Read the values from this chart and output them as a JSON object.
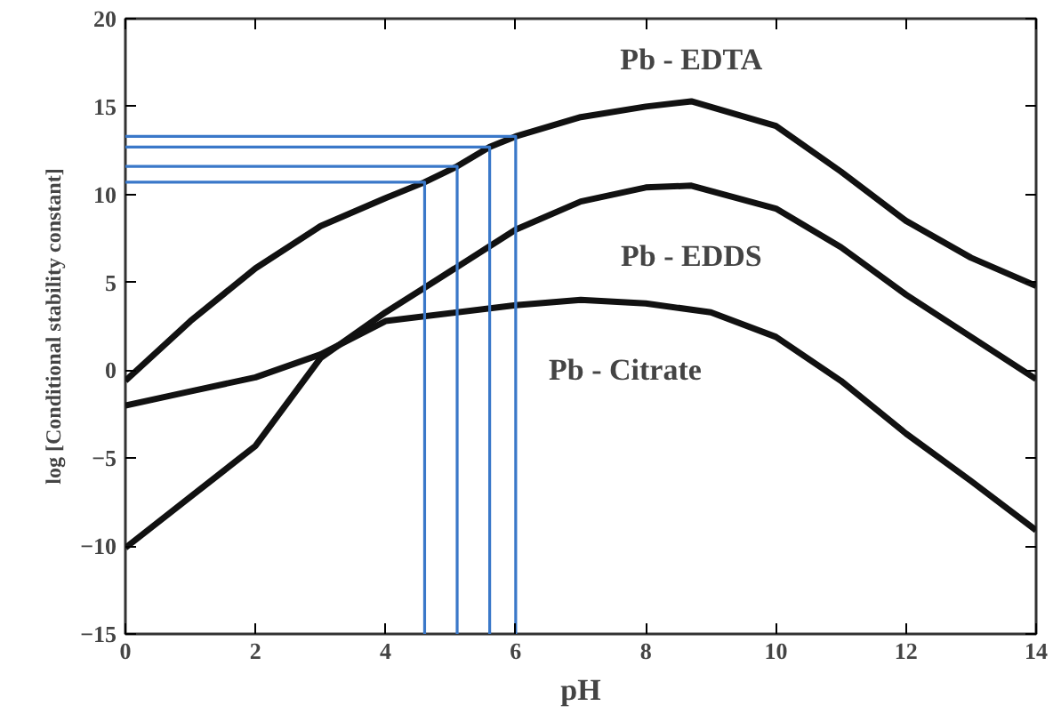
{
  "chart_data": {
    "type": "line",
    "xlabel": "pH",
    "ylabel": "log [Conditional stability constant]",
    "xlim": [
      0,
      14
    ],
    "ylim": [
      -15,
      20
    ],
    "xticks": [
      0,
      2,
      4,
      6,
      8,
      10,
      12,
      14
    ],
    "yticks": [
      -15,
      -10,
      -5,
      0,
      5,
      10,
      15,
      20
    ],
    "grid": false,
    "marker": "none",
    "line_style": "solid",
    "series": [
      {
        "name": "Pb - EDTA",
        "color": "#111111",
        "x": [
          0,
          1,
          2,
          3,
          4,
          4.6,
          5.1,
          5.6,
          6,
          7,
          8,
          8.7,
          10,
          11,
          12,
          13,
          14
        ],
        "values": [
          -0.6,
          2.8,
          5.8,
          8.2,
          9.8,
          10.7,
          11.6,
          12.7,
          13.3,
          14.4,
          15.0,
          15.3,
          13.9,
          11.3,
          8.5,
          6.4,
          4.8
        ]
      },
      {
        "name": "Pb - EDDS",
        "color": "#111111",
        "x": [
          0,
          1,
          2,
          3,
          4,
          4.6,
          6,
          7,
          8,
          8.7,
          10,
          11,
          12,
          13,
          14
        ],
        "values": [
          -10.1,
          -7.2,
          -4.3,
          0.7,
          3.3,
          4.7,
          8.0,
          9.6,
          10.4,
          10.5,
          9.2,
          7.0,
          4.3,
          1.9,
          -0.5
        ]
      },
      {
        "name": "Pb - Citrate",
        "color": "#111111",
        "x": [
          0,
          1,
          2,
          3,
          4,
          6,
          7,
          8,
          9,
          10,
          11,
          12,
          13,
          14
        ],
        "values": [
          -2.0,
          -1.2,
          -0.4,
          0.9,
          2.8,
          3.7,
          4.0,
          3.8,
          3.3,
          1.9,
          -0.6,
          -3.6,
          -6.3,
          -9.1
        ]
      },
      {
        "type": "line",
        "color": "#3a78c9",
        "x": [
          0,
          4.6,
          4.6
        ],
        "values": [
          10.7,
          10.7,
          -15
        ]
      },
      {
        "type": "line",
        "color": "#3a78c9",
        "x": [
          0,
          5.1,
          5.1
        ],
        "values": [
          11.6,
          11.6,
          -15
        ]
      },
      {
        "type": "line",
        "color": "#3a78c9",
        "x": [
          0,
          5.6,
          5.6
        ],
        "values": [
          12.7,
          12.7,
          -15
        ]
      },
      {
        "type": "line",
        "color": "#3a78c9",
        "x": [
          0,
          6.0,
          6.0
        ],
        "values": [
          13.3,
          13.3,
          -15
        ]
      }
    ]
  }
}
